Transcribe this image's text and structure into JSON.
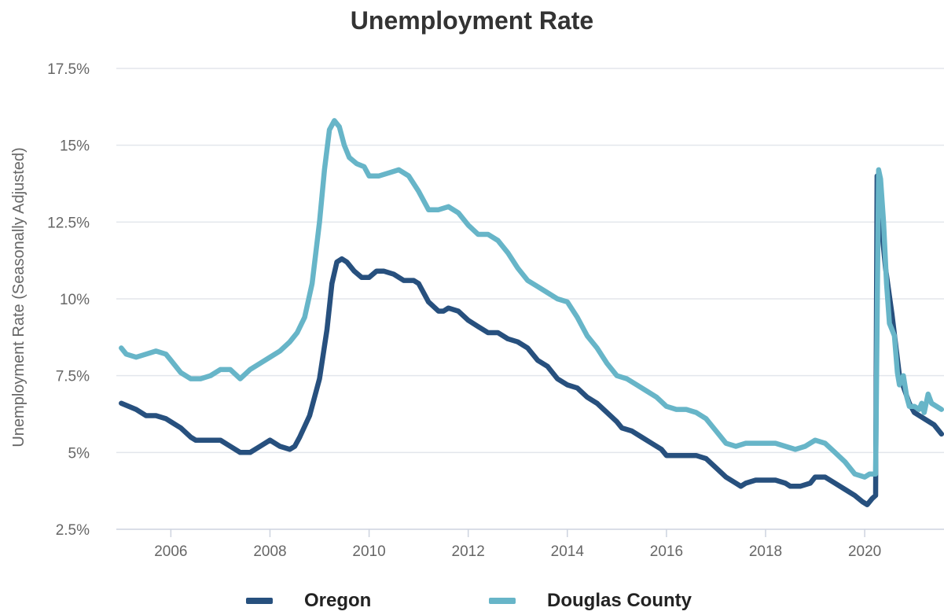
{
  "chart_data": {
    "type": "line",
    "title": "Unemployment Rate",
    "ylabel": "Unemployment Rate (Seasonally Adjusted)",
    "xlabel": "",
    "ylim": [
      2.5,
      17.5
    ],
    "xlim": [
      2004.9,
      2021.6
    ],
    "y_ticks": [
      {
        "value": 2.5,
        "label": "2.5%"
      },
      {
        "value": 5,
        "label": "5%"
      },
      {
        "value": 7.5,
        "label": "7.5%"
      },
      {
        "value": 10,
        "label": "10%"
      },
      {
        "value": 12.5,
        "label": "12.5%"
      },
      {
        "value": 15,
        "label": "15%"
      },
      {
        "value": 17.5,
        "label": "17.5%"
      }
    ],
    "x_ticks": [
      {
        "value": 2006,
        "label": "2006"
      },
      {
        "value": 2008,
        "label": "2008"
      },
      {
        "value": 2010,
        "label": "2010"
      },
      {
        "value": 2012,
        "label": "2012"
      },
      {
        "value": 2014,
        "label": "2014"
      },
      {
        "value": 2016,
        "label": "2016"
      },
      {
        "value": 2018,
        "label": "2018"
      },
      {
        "value": 2020,
        "label": "2020"
      }
    ],
    "grid": "horizontal",
    "legend_position": "bottom",
    "series": [
      {
        "name": "Oregon",
        "color": "#27507e",
        "points": [
          [
            2005.0,
            6.6
          ],
          [
            2005.3,
            6.4
          ],
          [
            2005.5,
            6.2
          ],
          [
            2005.7,
            6.2
          ],
          [
            2005.9,
            6.1
          ],
          [
            2006.0,
            6.0
          ],
          [
            2006.2,
            5.8
          ],
          [
            2006.4,
            5.5
          ],
          [
            2006.5,
            5.4
          ],
          [
            2006.6,
            5.4
          ],
          [
            2006.8,
            5.4
          ],
          [
            2007.0,
            5.4
          ],
          [
            2007.2,
            5.2
          ],
          [
            2007.4,
            5.0
          ],
          [
            2007.6,
            5.0
          ],
          [
            2007.8,
            5.2
          ],
          [
            2008.0,
            5.4
          ],
          [
            2008.2,
            5.2
          ],
          [
            2008.4,
            5.1
          ],
          [
            2008.5,
            5.2
          ],
          [
            2008.6,
            5.5
          ],
          [
            2008.8,
            6.2
          ],
          [
            2009.0,
            7.4
          ],
          [
            2009.15,
            9.0
          ],
          [
            2009.25,
            10.5
          ],
          [
            2009.35,
            11.2
          ],
          [
            2009.45,
            11.3
          ],
          [
            2009.55,
            11.2
          ],
          [
            2009.7,
            10.9
          ],
          [
            2009.85,
            10.7
          ],
          [
            2010.0,
            10.7
          ],
          [
            2010.15,
            10.9
          ],
          [
            2010.3,
            10.9
          ],
          [
            2010.5,
            10.8
          ],
          [
            2010.7,
            10.6
          ],
          [
            2010.9,
            10.6
          ],
          [
            2011.0,
            10.5
          ],
          [
            2011.2,
            9.9
          ],
          [
            2011.4,
            9.6
          ],
          [
            2011.5,
            9.6
          ],
          [
            2011.6,
            9.7
          ],
          [
            2011.8,
            9.6
          ],
          [
            2012.0,
            9.3
          ],
          [
            2012.2,
            9.1
          ],
          [
            2012.4,
            8.9
          ],
          [
            2012.6,
            8.9
          ],
          [
            2012.8,
            8.7
          ],
          [
            2013.0,
            8.6
          ],
          [
            2013.2,
            8.4
          ],
          [
            2013.4,
            8.0
          ],
          [
            2013.6,
            7.8
          ],
          [
            2013.8,
            7.4
          ],
          [
            2014.0,
            7.2
          ],
          [
            2014.2,
            7.1
          ],
          [
            2014.4,
            6.8
          ],
          [
            2014.6,
            6.6
          ],
          [
            2014.8,
            6.3
          ],
          [
            2015.0,
            6.0
          ],
          [
            2015.1,
            5.8
          ],
          [
            2015.3,
            5.7
          ],
          [
            2015.5,
            5.5
          ],
          [
            2015.7,
            5.3
          ],
          [
            2015.9,
            5.1
          ],
          [
            2016.0,
            4.9
          ],
          [
            2016.2,
            4.9
          ],
          [
            2016.4,
            4.9
          ],
          [
            2016.6,
            4.9
          ],
          [
            2016.8,
            4.8
          ],
          [
            2017.0,
            4.5
          ],
          [
            2017.2,
            4.2
          ],
          [
            2017.4,
            4.0
          ],
          [
            2017.5,
            3.9
          ],
          [
            2017.6,
            4.0
          ],
          [
            2017.8,
            4.1
          ],
          [
            2018.0,
            4.1
          ],
          [
            2018.2,
            4.1
          ],
          [
            2018.4,
            4.0
          ],
          [
            2018.5,
            3.9
          ],
          [
            2018.7,
            3.9
          ],
          [
            2018.9,
            4.0
          ],
          [
            2019.0,
            4.2
          ],
          [
            2019.2,
            4.2
          ],
          [
            2019.4,
            4.0
          ],
          [
            2019.6,
            3.8
          ],
          [
            2019.8,
            3.6
          ],
          [
            2019.95,
            3.4
          ],
          [
            2020.05,
            3.3
          ],
          [
            2020.15,
            3.5
          ],
          [
            2020.22,
            3.6
          ],
          [
            2020.25,
            14.0
          ],
          [
            2020.33,
            12.5
          ],
          [
            2020.42,
            11.0
          ],
          [
            2020.55,
            9.5
          ],
          [
            2020.7,
            7.5
          ],
          [
            2020.9,
            6.6
          ],
          [
            2021.0,
            6.3
          ],
          [
            2021.2,
            6.1
          ],
          [
            2021.4,
            5.9
          ],
          [
            2021.55,
            5.6
          ]
        ]
      },
      {
        "name": "Douglas County",
        "color": "#67b5c8",
        "points": [
          [
            2005.0,
            8.4
          ],
          [
            2005.1,
            8.2
          ],
          [
            2005.3,
            8.1
          ],
          [
            2005.5,
            8.2
          ],
          [
            2005.7,
            8.3
          ],
          [
            2005.9,
            8.2
          ],
          [
            2006.0,
            8.0
          ],
          [
            2006.2,
            7.6
          ],
          [
            2006.4,
            7.4
          ],
          [
            2006.6,
            7.4
          ],
          [
            2006.8,
            7.5
          ],
          [
            2007.0,
            7.7
          ],
          [
            2007.2,
            7.7
          ],
          [
            2007.4,
            7.4
          ],
          [
            2007.6,
            7.7
          ],
          [
            2007.8,
            7.9
          ],
          [
            2008.0,
            8.1
          ],
          [
            2008.2,
            8.3
          ],
          [
            2008.4,
            8.6
          ],
          [
            2008.55,
            8.9
          ],
          [
            2008.7,
            9.4
          ],
          [
            2008.85,
            10.5
          ],
          [
            2009.0,
            12.5
          ],
          [
            2009.1,
            14.2
          ],
          [
            2009.2,
            15.5
          ],
          [
            2009.3,
            15.8
          ],
          [
            2009.4,
            15.6
          ],
          [
            2009.5,
            15.0
          ],
          [
            2009.6,
            14.6
          ],
          [
            2009.75,
            14.4
          ],
          [
            2009.9,
            14.3
          ],
          [
            2010.0,
            14.0
          ],
          [
            2010.2,
            14.0
          ],
          [
            2010.4,
            14.1
          ],
          [
            2010.6,
            14.2
          ],
          [
            2010.8,
            14.0
          ],
          [
            2011.0,
            13.5
          ],
          [
            2011.2,
            12.9
          ],
          [
            2011.4,
            12.9
          ],
          [
            2011.6,
            13.0
          ],
          [
            2011.8,
            12.8
          ],
          [
            2012.0,
            12.4
          ],
          [
            2012.2,
            12.1
          ],
          [
            2012.4,
            12.1
          ],
          [
            2012.6,
            11.9
          ],
          [
            2012.8,
            11.5
          ],
          [
            2013.0,
            11.0
          ],
          [
            2013.2,
            10.6
          ],
          [
            2013.4,
            10.4
          ],
          [
            2013.6,
            10.2
          ],
          [
            2013.8,
            10.0
          ],
          [
            2014.0,
            9.9
          ],
          [
            2014.2,
            9.4
          ],
          [
            2014.4,
            8.8
          ],
          [
            2014.6,
            8.4
          ],
          [
            2014.8,
            7.9
          ],
          [
            2015.0,
            7.5
          ],
          [
            2015.2,
            7.4
          ],
          [
            2015.4,
            7.2
          ],
          [
            2015.6,
            7.0
          ],
          [
            2015.8,
            6.8
          ],
          [
            2016.0,
            6.5
          ],
          [
            2016.2,
            6.4
          ],
          [
            2016.4,
            6.4
          ],
          [
            2016.6,
            6.3
          ],
          [
            2016.8,
            6.1
          ],
          [
            2017.0,
            5.7
          ],
          [
            2017.2,
            5.3
          ],
          [
            2017.4,
            5.2
          ],
          [
            2017.6,
            5.3
          ],
          [
            2017.8,
            5.3
          ],
          [
            2018.0,
            5.3
          ],
          [
            2018.2,
            5.3
          ],
          [
            2018.4,
            5.2
          ],
          [
            2018.6,
            5.1
          ],
          [
            2018.8,
            5.2
          ],
          [
            2019.0,
            5.4
          ],
          [
            2019.2,
            5.3
          ],
          [
            2019.4,
            5.0
          ],
          [
            2019.6,
            4.7
          ],
          [
            2019.8,
            4.3
          ],
          [
            2020.0,
            4.2
          ],
          [
            2020.1,
            4.3
          ],
          [
            2020.22,
            4.3
          ],
          [
            2020.28,
            14.2
          ],
          [
            2020.32,
            13.9
          ],
          [
            2020.38,
            12.5
          ],
          [
            2020.44,
            10.5
          ],
          [
            2020.5,
            9.2
          ],
          [
            2020.55,
            9.0
          ],
          [
            2020.6,
            8.8
          ],
          [
            2020.66,
            7.6
          ],
          [
            2020.7,
            7.2
          ],
          [
            2020.78,
            7.5
          ],
          [
            2020.85,
            6.8
          ],
          [
            2020.9,
            6.5
          ],
          [
            2021.0,
            6.5
          ],
          [
            2021.1,
            6.4
          ],
          [
            2021.15,
            6.6
          ],
          [
            2021.2,
            6.3
          ],
          [
            2021.28,
            6.9
          ],
          [
            2021.35,
            6.6
          ],
          [
            2021.45,
            6.5
          ],
          [
            2021.55,
            6.4
          ]
        ]
      }
    ]
  }
}
